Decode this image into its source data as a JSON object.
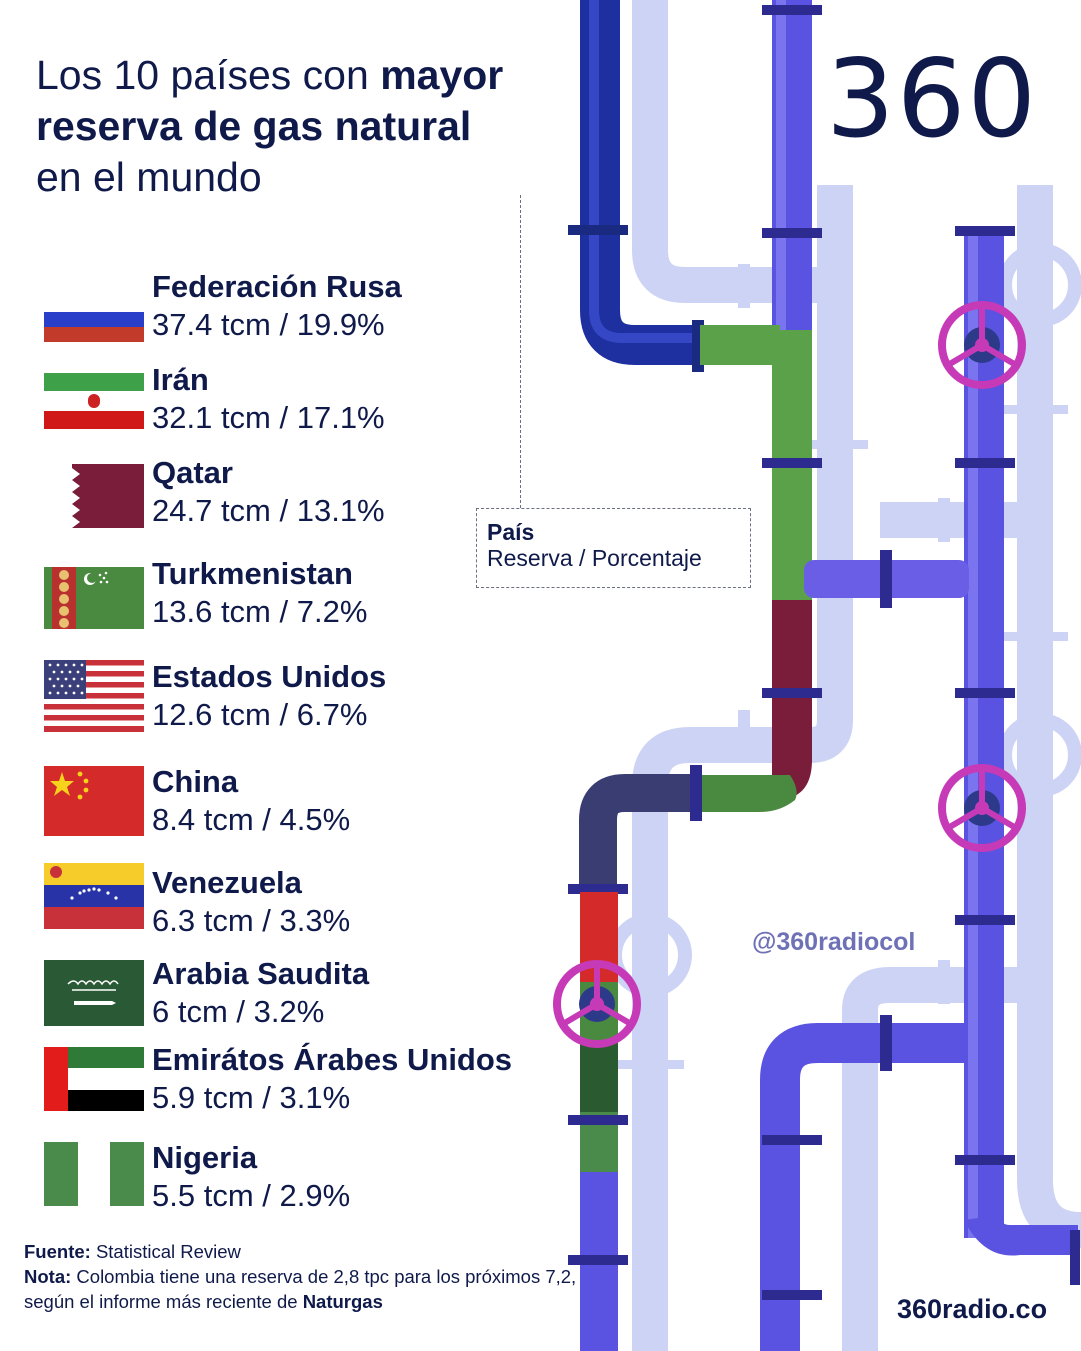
{
  "header": {
    "title_pre": "Los 10 países con ",
    "title_bold": "mayor reserva de gas natural",
    "title_post": "en el mundo",
    "logo_text": "360"
  },
  "legend": {
    "name": "País",
    "subtitle": "Reserva / Porcentaje"
  },
  "countries": [
    {
      "name": "Federación Rusa",
      "value": "37.4 tcm / 19.9%",
      "flag": "russia",
      "pipe_color": "#5aa14a"
    },
    {
      "name": "Irán",
      "value": "32.1 tcm / 17.1%",
      "flag": "iran",
      "pipe_color": "#5aa14a"
    },
    {
      "name": "Qatar",
      "value": "24.7 tcm / 13.1%",
      "flag": "qatar",
      "pipe_color": "#7a1d3a"
    },
    {
      "name": "Turkmenistan",
      "value": "13.6 tcm / 7.2%",
      "flag": "turkmenistan",
      "pipe_color": "#4a8a40"
    },
    {
      "name": "Estados Unidos",
      "value": "12.6 tcm / 6.7%",
      "flag": "usa",
      "pipe_color": "#2d3a6e"
    },
    {
      "name": "China",
      "value": "8.4 tcm / 4.5%",
      "flag": "china",
      "pipe_color": "#d42a2a"
    },
    {
      "name": "Venezuela",
      "value": "6.3 tcm / 3.3%",
      "flag": "venezuela",
      "pipe_color": "#ffffff"
    },
    {
      "name": "Arabia Saudita",
      "value": "6 tcm / 3.2%",
      "flag": "saudi",
      "pipe_color": "#2a5a2a"
    },
    {
      "name": "Emirátos Árabes Unidos",
      "value": "5.9 tcm / 3.1%",
      "flag": "uae",
      "pipe_color": "#2a5a2a"
    },
    {
      "name": "Nigeria",
      "value": "5.5 tcm / 2.9%",
      "flag": "nigeria",
      "pipe_color": "#4a8a4a"
    }
  ],
  "footer": {
    "source_label": "Fuente:",
    "source_text": " Statistical Review",
    "note_label": "Nota:",
    "note_text": " Colombia tiene una reserva de 2,8 tpc para los próximos 7,2, según el informe más reciente de ",
    "note_bold": "Naturgas"
  },
  "social_handle": "@360radiocol",
  "website": "360radio.co",
  "colors": {
    "navy": "#0f1a4a",
    "pipe_dark_blue": "#2638a8",
    "pipe_purple": "#6a5ee6",
    "pipe_light": "#c9cff5",
    "valve_magenta": "#c63ab7",
    "green": "#5aa14a",
    "maroon": "#7a1d3a"
  }
}
